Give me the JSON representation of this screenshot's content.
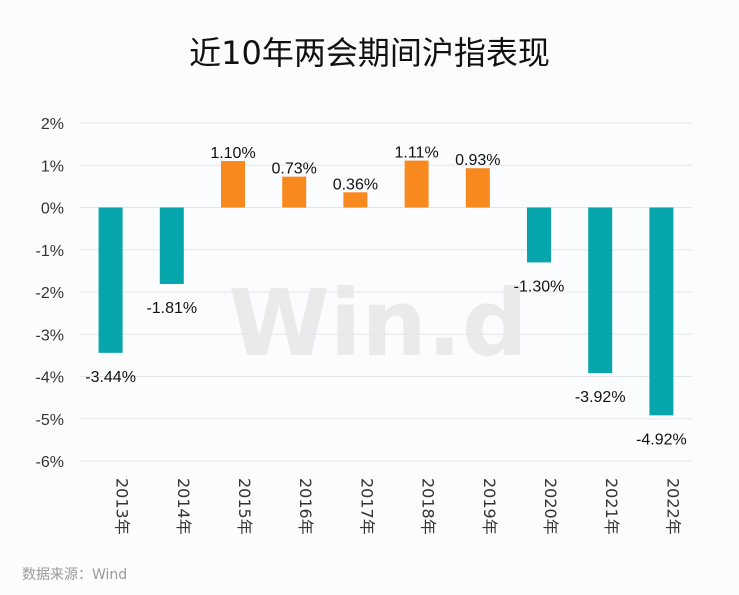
{
  "chart_data": {
    "type": "bar",
    "title": "近10年两会期间沪指表现",
    "categories": [
      "2013年",
      "2014年",
      "2015年",
      "2016年",
      "2017年",
      "2018年",
      "2019年",
      "2020年",
      "2021年",
      "2022年"
    ],
    "values": [
      -3.44,
      -1.81,
      1.1,
      0.73,
      0.36,
      1.11,
      0.93,
      -1.3,
      -3.92,
      -4.92
    ],
    "data_labels": [
      "-3.44%",
      "-1.81%",
      "1.10%",
      "0.73%",
      "0.36%",
      "1.11%",
      "0.93%",
      "-1.30%",
      "-3.92%",
      "-4.92%"
    ],
    "ylim": [
      -6,
      2
    ],
    "yticks": [
      2,
      1,
      0,
      -1,
      -2,
      -3,
      -4,
      -5,
      -6
    ],
    "ytick_labels": [
      "2%",
      "1%",
      "0%",
      "-1%",
      "-2%",
      "-3%",
      "-4%",
      "-5%",
      "-6%"
    ],
    "xlabel": "",
    "ylabel": "",
    "grid": true,
    "legend": "none",
    "colors": {
      "positive": "#f7891e",
      "negative": "#07a6ad",
      "grid": "#e3e6ea"
    },
    "watermark": "Win.d"
  },
  "source_note": "数据来源：Wind"
}
